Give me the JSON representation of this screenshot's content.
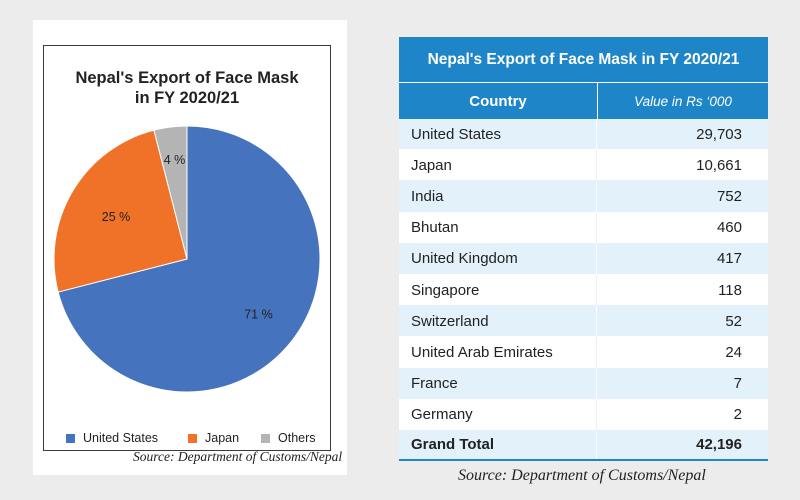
{
  "chart_data": {
    "type": "pie",
    "title": "Nepal's Export of Face Mask in FY 2020/21",
    "title_lines": [
      "Nepal's Export of Face Mask",
      "in FY 2020/21"
    ],
    "slices": [
      {
        "name": "United States",
        "value": 71,
        "label": "71 %",
        "color": "#4573bd"
      },
      {
        "name": "Japan",
        "value": 25,
        "label": "25 %",
        "color": "#f07228"
      },
      {
        "name": "Others",
        "value": 4,
        "label": "4 %",
        "color": "#b4b4b4"
      }
    ],
    "legend": [
      "United States",
      "Japan",
      "Others"
    ],
    "legend_placement": "bottom",
    "source": "Source: Department of Customs/Nepal"
  },
  "table": {
    "title": "Nepal's Export of Face Mask in FY 2020/21",
    "columns": [
      "Country",
      "Value in Rs ‘000"
    ],
    "rows": [
      [
        "United States",
        "29,703"
      ],
      [
        "Japan",
        "10,661"
      ],
      [
        "India",
        "752"
      ],
      [
        "Bhutan",
        "460"
      ],
      [
        "United Kingdom",
        "417"
      ],
      [
        "Singapore",
        "118"
      ],
      [
        "Switzerland",
        "52"
      ],
      [
        "United Arab Emirates",
        "24"
      ],
      [
        "France",
        "7"
      ],
      [
        "Germany",
        "2"
      ]
    ],
    "total": [
      "Grand Total",
      "42,196"
    ],
    "source": "Source: Department of Customs/Nepal",
    "accent_color": "#1e86c8",
    "row_tint": "#e3f1fb"
  }
}
